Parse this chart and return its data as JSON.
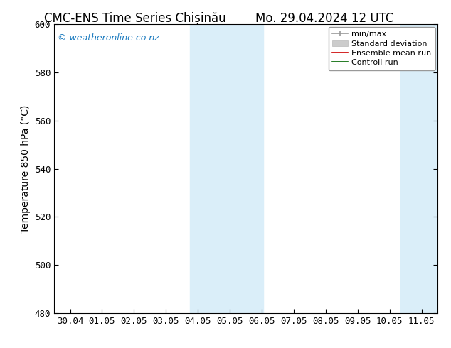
{
  "title_left": "CMC-ENS Time Series Chișinău",
  "title_right": "Mo. 29.04.2024 12 UTC",
  "ylabel": "Temperature 850 hPa (°C)",
  "ylim": [
    480,
    600
  ],
  "yticks": [
    480,
    500,
    520,
    540,
    560,
    580,
    600
  ],
  "xtick_labels": [
    "30.04",
    "01.05",
    "02.05",
    "03.05",
    "04.05",
    "05.05",
    "06.05",
    "07.05",
    "08.05",
    "09.05",
    "10.05",
    "11.05"
  ],
  "xtick_positions": [
    0,
    1,
    2,
    3,
    4,
    5,
    6,
    7,
    8,
    9,
    10,
    11
  ],
  "xlim": [
    -0.5,
    11.5
  ],
  "shaded_regions": [
    {
      "x_start": 3.75,
      "x_end": 6.05,
      "color": "#daeef9"
    },
    {
      "x_start": 10.35,
      "x_end": 11.5,
      "color": "#daeef9"
    }
  ],
  "watermark_text": "© weatheronline.co.nz",
  "watermark_color": "#1a7abf",
  "watermark_fontsize": 9,
  "legend_entries": [
    {
      "label": "min/max",
      "color": "#aaaaaa",
      "lw": 1.2
    },
    {
      "label": "Standard deviation",
      "color": "#cccccc",
      "lw": 6
    },
    {
      "label": "Ensemble mean run",
      "color": "#cc0000",
      "lw": 1.2
    },
    {
      "label": "Controll run",
      "color": "#006600",
      "lw": 1.2
    }
  ],
  "title_fontsize": 12,
  "ylabel_fontsize": 10,
  "tick_fontsize": 9,
  "fig_bg": "#ffffff",
  "plot_bg": "#ffffff"
}
